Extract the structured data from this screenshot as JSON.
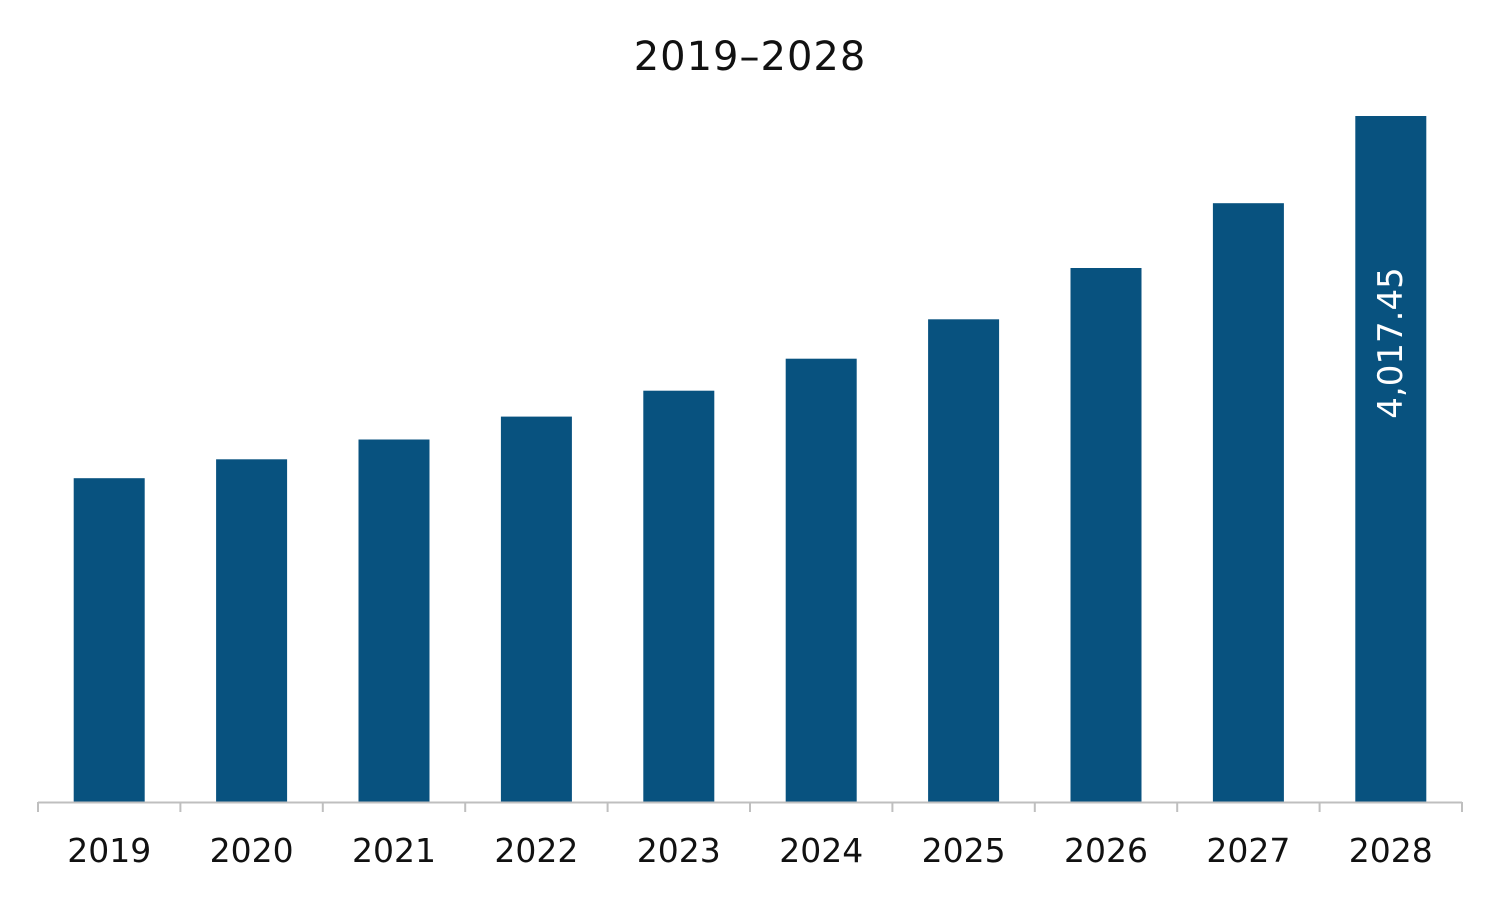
{
  "chart_data": {
    "type": "bar",
    "title": "2019–2028",
    "categories": [
      "2019",
      "2020",
      "2021",
      "2022",
      "2023",
      "2024",
      "2025",
      "2026",
      "2027",
      "2028"
    ],
    "values": [
      1896,
      2007,
      2123,
      2257,
      2409,
      2596,
      2827,
      3127,
      3507,
      4017.45
    ],
    "data_labels": [
      "",
      "",
      "",
      "",
      "",
      "",
      "",
      "",
      "",
      "4,017.45"
    ],
    "ylim": [
      0,
      4017.45
    ],
    "grid": false,
    "legend": "none",
    "colors": {
      "bar": "#08527F",
      "axis": "#BFBFBF"
    }
  }
}
